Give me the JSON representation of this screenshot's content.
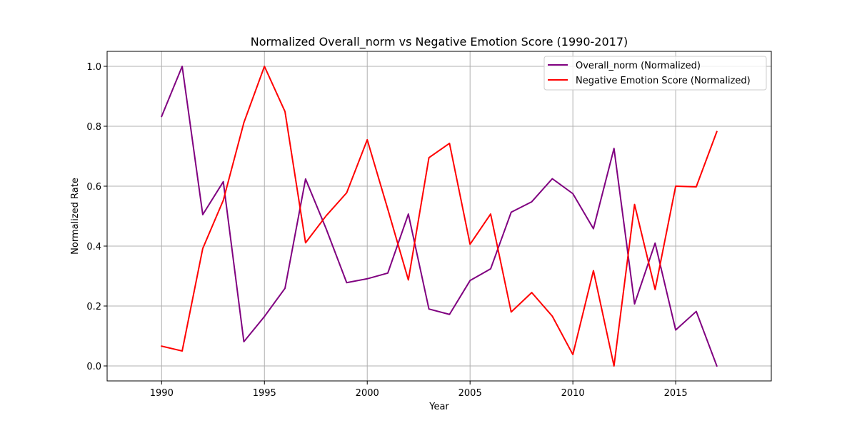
{
  "chart_data": {
    "type": "line",
    "title": "Normalized Overall_norm vs Negative Emotion Score (1990-2017)",
    "xlabel": "Year",
    "ylabel": "Normalized Rate",
    "xlim": [
      1987.35,
      2019.65
    ],
    "ylim": [
      -0.05,
      1.05
    ],
    "xticks": [
      1990,
      1995,
      2000,
      2005,
      2010,
      2015
    ],
    "yticks": [
      0.0,
      0.2,
      0.4,
      0.6,
      0.8,
      1.0
    ],
    "grid": true,
    "legend_position": "top-right",
    "x": [
      1990,
      1991,
      1992,
      1993,
      1994,
      1995,
      1996,
      1997,
      1998,
      1999,
      2000,
      2001,
      2002,
      2003,
      2004,
      2005,
      2006,
      2007,
      2008,
      2009,
      2010,
      2011,
      2012,
      2013,
      2014,
      2015,
      2016,
      2017
    ],
    "series": [
      {
        "name": "Overall_norm (Normalized)",
        "color": "#800080",
        "values": [
          0.833,
          1.0,
          0.505,
          0.615,
          0.081,
          0.165,
          0.259,
          0.624,
          0.458,
          0.278,
          0.291,
          0.31,
          0.507,
          0.19,
          0.172,
          0.285,
          0.324,
          0.513,
          0.548,
          0.625,
          0.575,
          0.458,
          0.726,
          0.207,
          0.41,
          0.12,
          0.182,
          0.0
        ]
      },
      {
        "name": "Negative Emotion Score (Normalized)",
        "color": "#ff0000",
        "values": [
          0.066,
          0.05,
          0.392,
          0.553,
          0.812,
          1.0,
          0.849,
          0.411,
          0.501,
          0.578,
          0.755,
          0.523,
          0.287,
          0.695,
          0.743,
          0.406,
          0.507,
          0.18,
          0.245,
          0.166,
          0.038,
          0.318,
          0.0,
          0.539,
          0.255,
          0.6,
          0.598,
          0.782
        ]
      }
    ]
  }
}
